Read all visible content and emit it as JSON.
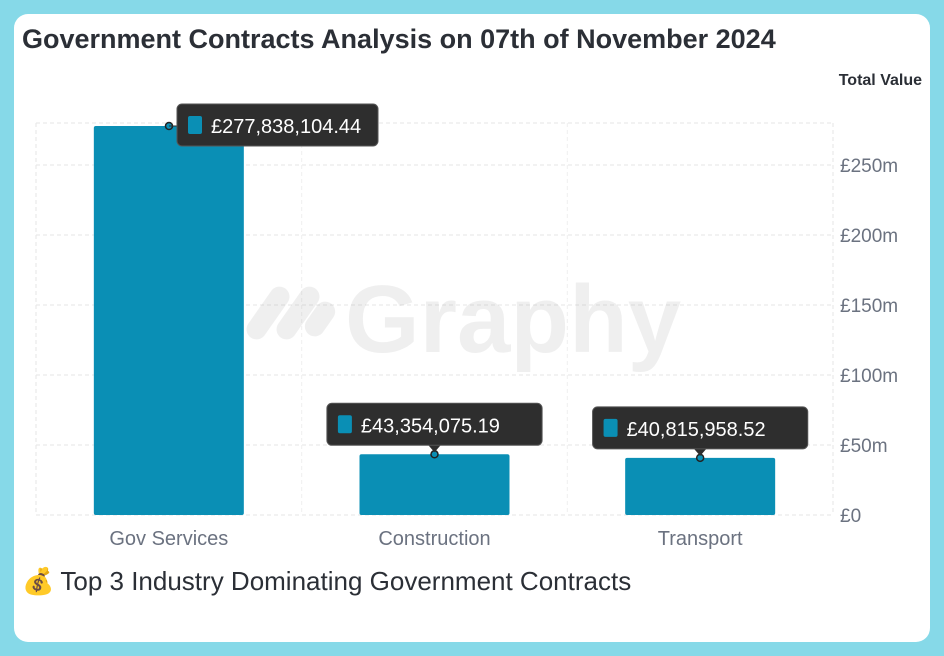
{
  "title": "Government Contracts Analysis on 07th of November 2024",
  "footer": {
    "emoji": "💰",
    "text": "Top 3 Industry Dominating Government Contracts"
  },
  "watermark": "Graphy",
  "colors": {
    "bar": "#0a8fb5",
    "tooltip_bg": "#2e2e2e",
    "frame": "#86d9e8",
    "grid": "#e6e6e6"
  },
  "chart_data": {
    "type": "bar",
    "title": "Government Contracts Analysis on 07th of November 2024",
    "xlabel": "",
    "ylabel": "Total Value",
    "categories": [
      "Gov Services",
      "Construction",
      "Transport"
    ],
    "values": [
      277838104.44,
      43354075.19,
      40815958.52
    ],
    "data_labels": [
      "£277,838,104.44",
      "£43,354,075.19",
      "£40,815,958.52"
    ],
    "ylim": [
      0,
      280000000
    ],
    "yticks": [
      0,
      50000000,
      100000000,
      150000000,
      200000000,
      250000000
    ],
    "ytick_labels": [
      "£0",
      "£50m",
      "£100m",
      "£150m",
      "£200m",
      "£250m"
    ],
    "y_axis_side": "right",
    "grid": true
  }
}
